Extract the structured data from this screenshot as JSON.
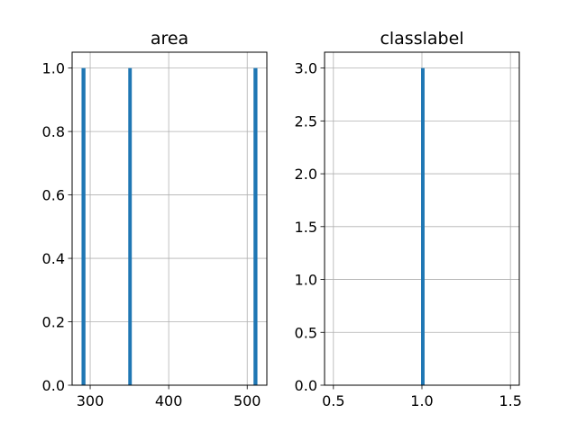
{
  "chart_data": [
    {
      "type": "bar",
      "subtype": "histogram",
      "title": "area",
      "xlabel": "",
      "ylabel": "",
      "grid": true,
      "xlim": [
        277,
        525
      ],
      "ylim": [
        0,
        1.05
      ],
      "xticks": [
        300,
        400,
        500
      ],
      "xtick_labels": [
        "300",
        "400",
        "500"
      ],
      "yticks": [
        0.0,
        0.2,
        0.4,
        0.6,
        0.8,
        1.0
      ],
      "ytick_labels": [
        "0.0",
        "0.2",
        "0.4",
        "0.6",
        "0.8",
        "1.0"
      ],
      "color": "#1f77b4",
      "bars": [
        {
          "x_start": 289.0,
          "x_end": 294.0,
          "count": 1
        },
        {
          "x_start": 348.5,
          "x_end": 353.0,
          "count": 1
        },
        {
          "x_start": 508.0,
          "x_end": 513.0,
          "count": 1
        }
      ]
    },
    {
      "type": "bar",
      "subtype": "histogram",
      "title": "classlabel",
      "xlabel": "",
      "ylabel": "",
      "grid": true,
      "xlim": [
        0.45,
        1.55
      ],
      "ylim": [
        0,
        3.15
      ],
      "xticks": [
        0.5,
        1.0,
        1.5
      ],
      "xtick_labels": [
        "0.5",
        "1.0",
        "1.5"
      ],
      "yticks": [
        0.0,
        0.5,
        1.0,
        1.5,
        2.0,
        2.5,
        3.0
      ],
      "ytick_labels": [
        "0.0",
        "0.5",
        "1.0",
        "1.5",
        "2.0",
        "2.5",
        "3.0"
      ],
      "color": "#1f77b4",
      "bars": [
        {
          "x_start": 0.995,
          "x_end": 1.015,
          "count": 3
        }
      ]
    }
  ]
}
